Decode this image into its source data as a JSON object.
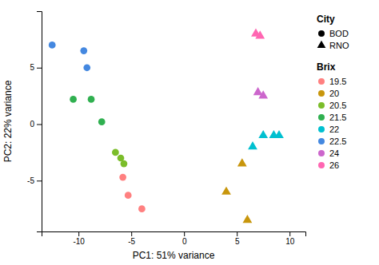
{
  "chart_data": {
    "type": "scatter",
    "xlabel": "PC1: 51% variance",
    "ylabel": "PC2: 22% variance",
    "xlim": [
      -13.5,
      11.5
    ],
    "ylim": [
      -9.5,
      10.0
    ],
    "xticks": [
      -10,
      -5,
      0,
      5,
      10
    ],
    "yticks": [
      -5,
      0,
      5
    ],
    "series_legend_title": "Brix",
    "city_legend": {
      "title": "City",
      "entries": [
        {
          "name": "BOD",
          "marker": "circle"
        },
        {
          "name": "RNO",
          "marker": "triangle"
        }
      ]
    },
    "series": [
      {
        "name": "19.5",
        "color": "#FF8080",
        "marker": "circle",
        "x": [
          -5.8,
          -5.3,
          -4.0
        ],
        "values": [
          -4.7,
          -6.3,
          -7.5
        ]
      },
      {
        "name": "20",
        "color": "#C8960C",
        "marker": "triangle",
        "x": [
          4.0,
          5.5,
          6.0
        ],
        "values": [
          -6.0,
          -3.5,
          -8.5
        ]
      },
      {
        "name": "20.5",
        "color": "#7BBD2A",
        "marker": "circle",
        "x": [
          -6.5,
          -6.0,
          -5.7
        ],
        "values": [
          -2.5,
          -3.0,
          -3.5
        ]
      },
      {
        "name": "21.5",
        "color": "#30B050",
        "marker": "circle",
        "x": [
          -10.5,
          -8.8,
          -7.8
        ],
        "values": [
          2.2,
          2.2,
          0.2
        ]
      },
      {
        "name": "22",
        "color": "#00C0D0",
        "marker": "triangle",
        "x": [
          6.5,
          7.5,
          8.5,
          9.0
        ],
        "values": [
          -2.0,
          -1.0,
          -1.0,
          -1.0
        ]
      },
      {
        "name": "22.5",
        "color": "#4488E0",
        "marker": "circle",
        "x": [
          -12.5,
          -9.5,
          -9.2
        ],
        "values": [
          7.0,
          6.5,
          5.0
        ]
      },
      {
        "name": "24",
        "color": "#CC66CC",
        "marker": "triangle",
        "x": [
          7.0,
          7.5
        ],
        "values": [
          2.8,
          2.5
        ]
      },
      {
        "name": "26",
        "color": "#FF66B2",
        "marker": "triangle",
        "x": [
          6.8,
          7.2
        ],
        "values": [
          8.0,
          7.8
        ]
      }
    ]
  }
}
